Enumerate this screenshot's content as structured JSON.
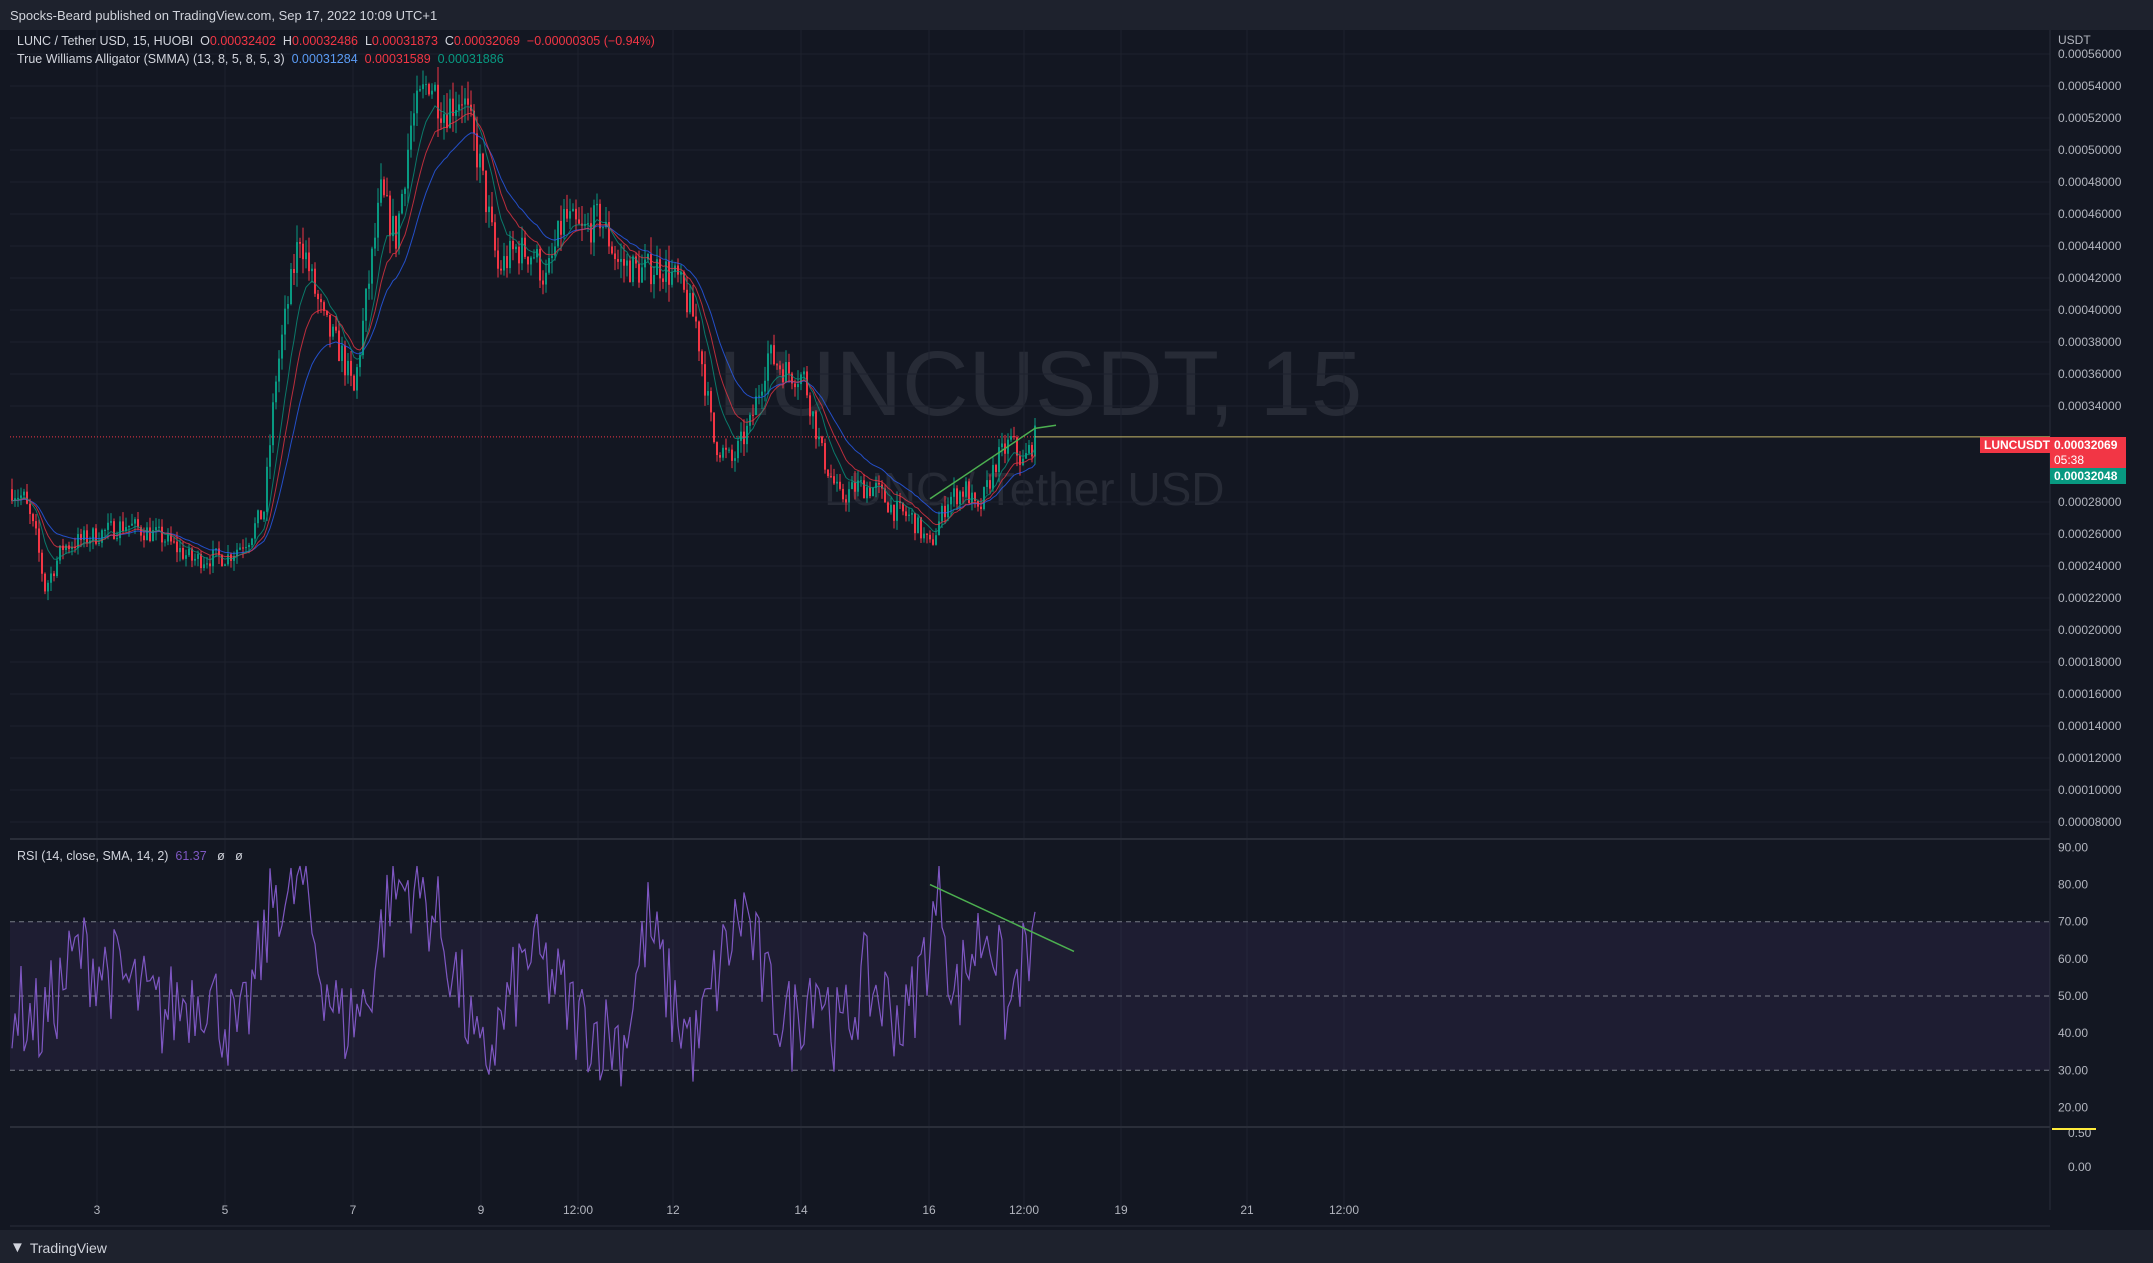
{
  "header": {
    "published": "Spocks-Beard published on TradingView.com, Sep 17, 2022 10:09 UTC+1"
  },
  "legend": {
    "symbol": "LUNC / Tether USD, 15, HUOBI",
    "open_label": "O",
    "open": "0.00032402",
    "high_label": "H",
    "high": "0.00032486",
    "low_label": "L",
    "low": "0.00031873",
    "close_label": "C",
    "close": "0.00032069",
    "change": "−0.00000305 (−0.94%)",
    "alligator": "True Williams Alligator (SMMA) (13, 8, 5, 8, 5, 3)",
    "jaw": "0.00031284",
    "teeth": "0.00031589",
    "lips": "0.00031886",
    "rsi": "RSI (14, close, SMA, 14, 2)",
    "rsi_value": "61.37",
    "rsi_extra1": "ø",
    "rsi_extra2": "ø"
  },
  "watermark": {
    "symbol": "LUNCUSDT, 15",
    "name": "LUNC / Tether USD"
  },
  "price_axis": {
    "currency": "USDT",
    "ticks": [
      "0.00056000",
      "0.00054000",
      "0.00052000",
      "0.00050000",
      "0.00048000",
      "0.00046000",
      "0.00044000",
      "0.00042000",
      "0.00040000",
      "0.00038000",
      "0.00036000",
      "0.00034000",
      "0.00028000",
      "0.00026000",
      "0.00024000",
      "0.00022000",
      "0.00020000",
      "0.00018000",
      "0.00016000",
      "0.00014000",
      "0.00012000",
      "0.00010000",
      "0.00008000"
    ],
    "last_label": "LUNCUSDT",
    "last_price": "0.00032069",
    "countdown": "05:38",
    "bid_price": "0.00032048"
  },
  "rsi_axis": {
    "ticks": [
      "90.00",
      "80.00",
      "70.00",
      "60.00",
      "50.00",
      "40.00",
      "30.00",
      "20.00"
    ],
    "lower_ticks": [
      "0.50",
      "0.00"
    ]
  },
  "time_axis": {
    "labels": [
      "3",
      "5",
      "7",
      "9",
      "12:00",
      "12",
      "14",
      "16",
      "12:00",
      "19",
      "21",
      "12:00"
    ]
  },
  "brand": {
    "name": "TradingView"
  },
  "colors": {
    "bg": "#131722",
    "up": "#089981",
    "down": "#f23645",
    "rsi": "#7e57c2",
    "trend": "#4caf50",
    "last": "#f23645",
    "bid": "#089981"
  },
  "chart_data": {
    "type": "candlestick",
    "price_range": [
      7e-05,
      0.000575
    ],
    "rsi_range": [
      15,
      92
    ],
    "price_anchors": [
      [
        0,
        0.000288
      ],
      [
        4,
        0.000282
      ],
      [
        8,
        0.000258
      ],
      [
        11,
        0.000226
      ],
      [
        17,
        0.000252
      ],
      [
        26,
        0.000258
      ],
      [
        38,
        0.000266
      ],
      [
        50,
        0.000258
      ],
      [
        60,
        0.000244
      ],
      [
        72,
        0.000246
      ],
      [
        79,
        0.000258
      ],
      [
        84,
        0.000275
      ],
      [
        88,
        0.000358
      ],
      [
        92,
        0.000405
      ],
      [
        96,
        0.000448
      ],
      [
        100,
        0.000418
      ],
      [
        104,
        0.000392
      ],
      [
        110,
        0.000372
      ],
      [
        114,
        0.000348
      ],
      [
        118,
        0.000405
      ],
      [
        123,
        0.000472
      ],
      [
        128,
        0.000445
      ],
      [
        133,
        0.000515
      ],
      [
        139,
        0.000545
      ],
      [
        144,
        0.000525
      ],
      [
        150,
        0.000535
      ],
      [
        156,
        0.00049
      ],
      [
        162,
        0.000425
      ],
      [
        168,
        0.000438
      ],
      [
        174,
        0.000435
      ],
      [
        178,
        0.000418
      ],
      [
        184,
        0.000458
      ],
      [
        190,
        0.000448
      ],
      [
        196,
        0.000458
      ],
      [
        202,
        0.00043
      ],
      [
        210,
        0.000424
      ],
      [
        216,
        0.000428
      ],
      [
        222,
        0.000418
      ],
      [
        228,
        0.000392
      ],
      [
        234,
        0.000318
      ],
      [
        240,
        0.000305
      ],
      [
        246,
        0.000328
      ],
      [
        252,
        0.000372
      ],
      [
        258,
        0.000362
      ],
      [
        264,
        0.000358
      ],
      [
        270,
        0.00031
      ],
      [
        276,
        0.000282
      ],
      [
        282,
        0.00029
      ],
      [
        288,
        0.000288
      ],
      [
        294,
        0.000275
      ],
      [
        300,
        0.00027
      ],
      [
        306,
        0.000252
      ],
      [
        312,
        0.000282
      ],
      [
        318,
        0.000288
      ],
      [
        322,
        0.000272
      ],
      [
        328,
        0.000305
      ],
      [
        333,
        0.000318
      ],
      [
        337,
        0.000304
      ],
      [
        341,
        0.00032
      ]
    ],
    "rsi_anchors": [
      [
        0,
        48
      ],
      [
        10,
        42
      ],
      [
        22,
        62
      ],
      [
        36,
        55
      ],
      [
        50,
        45
      ],
      [
        64,
        52
      ],
      [
        76,
        38
      ],
      [
        84,
        64
      ],
      [
        88,
        80
      ],
      [
        92,
        72
      ],
      [
        96,
        84
      ],
      [
        102,
        60
      ],
      [
        110,
        42
      ],
      [
        118,
        48
      ],
      [
        126,
        78
      ],
      [
        134,
        80
      ],
      [
        142,
        70
      ],
      [
        150,
        50
      ],
      [
        156,
        30
      ],
      [
        164,
        44
      ],
      [
        172,
        62
      ],
      [
        180,
        55
      ],
      [
        188,
        44
      ],
      [
        196,
        40
      ],
      [
        204,
        38
      ],
      [
        212,
        70
      ],
      [
        220,
        48
      ],
      [
        228,
        36
      ],
      [
        236,
        58
      ],
      [
        244,
        74
      ],
      [
        252,
        50
      ],
      [
        260,
        42
      ],
      [
        268,
        56
      ],
      [
        276,
        38
      ],
      [
        284,
        54
      ],
      [
        292,
        48
      ],
      [
        298,
        42
      ],
      [
        306,
        66
      ],
      [
        310,
        78
      ],
      [
        314,
        48
      ],
      [
        320,
        62
      ],
      [
        326,
        70
      ],
      [
        332,
        44
      ],
      [
        336,
        58
      ],
      [
        341,
        61
      ]
    ],
    "trendlines": {
      "price": [
        [
          306,
          0.000282
        ],
        [
          341,
          0.000326
        ],
        [
          348,
          0.000328
        ]
      ],
      "rsi": [
        [
          306,
          80
        ],
        [
          354,
          62
        ]
      ]
    },
    "last_price": 0.00032069,
    "rsi_levels": [
      70,
      50,
      30
    ],
    "candles": 342
  }
}
